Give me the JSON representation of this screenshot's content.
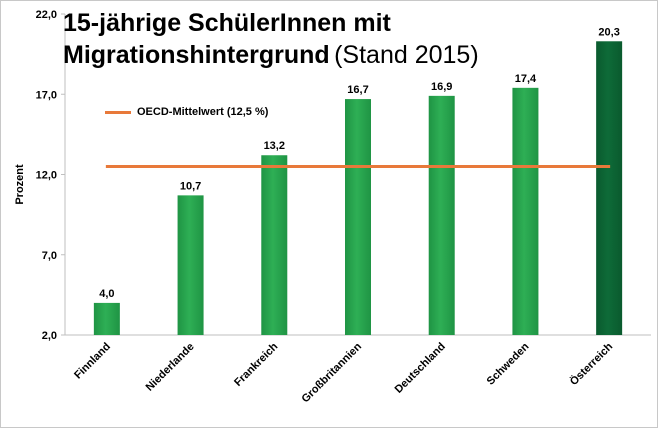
{
  "chart_data": {
    "type": "bar",
    "title_bold_line1": "15-jährige SchülerInnen mit",
    "title_bold_line2": "Migrationshintergrund",
    "title_suffix": "(Stand 2015)",
    "ylabel": "Prozent",
    "categories": [
      "Finnland",
      "Niederlande",
      "Frankreich",
      "Großbritannien",
      "Deutschland",
      "Schweden",
      "Österreich"
    ],
    "values": [
      4.0,
      10.7,
      13.2,
      16.7,
      16.9,
      17.4,
      20.3
    ],
    "value_labels": [
      "4,0",
      "10,7",
      "13,2",
      "16,7",
      "16,9",
      "17,4",
      "20,3"
    ],
    "ylim": [
      2.0,
      22.0
    ],
    "yticks": [
      2.0,
      7.0,
      12.0,
      17.0,
      22.0
    ],
    "ytick_labels": [
      "2,0",
      "7,0",
      "12,0",
      "17,0",
      "22,0"
    ],
    "reference_line": {
      "label": "OECD-Mittelwert (12,5 %)",
      "value": 12.5,
      "color": "#e8793a"
    },
    "colors": {
      "bar": "#2eaf55",
      "highlight_bar": "#0e6b38",
      "highlight_category": "Österreich"
    },
    "grid": false,
    "legend_position": "top-left"
  }
}
